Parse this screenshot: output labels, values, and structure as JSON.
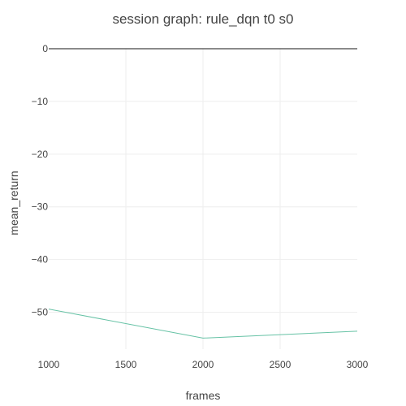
{
  "chart_data": {
    "type": "line",
    "title": "session graph: rule_dqn t0 s0",
    "xlabel": "frames",
    "ylabel": "mean_return",
    "xlim": [
      1000,
      3000
    ],
    "ylim": [
      -57,
      0
    ],
    "x_ticks": [
      1000,
      1500,
      2000,
      2500,
      3000
    ],
    "y_ticks": [
      0,
      -10,
      -20,
      -30,
      -40,
      -50
    ],
    "grid": true,
    "series": [
      {
        "x": [
          1000,
          2000,
          3000
        ],
        "y": [
          -49.4,
          -54.9,
          -53.6
        ],
        "color": "#66c2a5"
      }
    ]
  }
}
